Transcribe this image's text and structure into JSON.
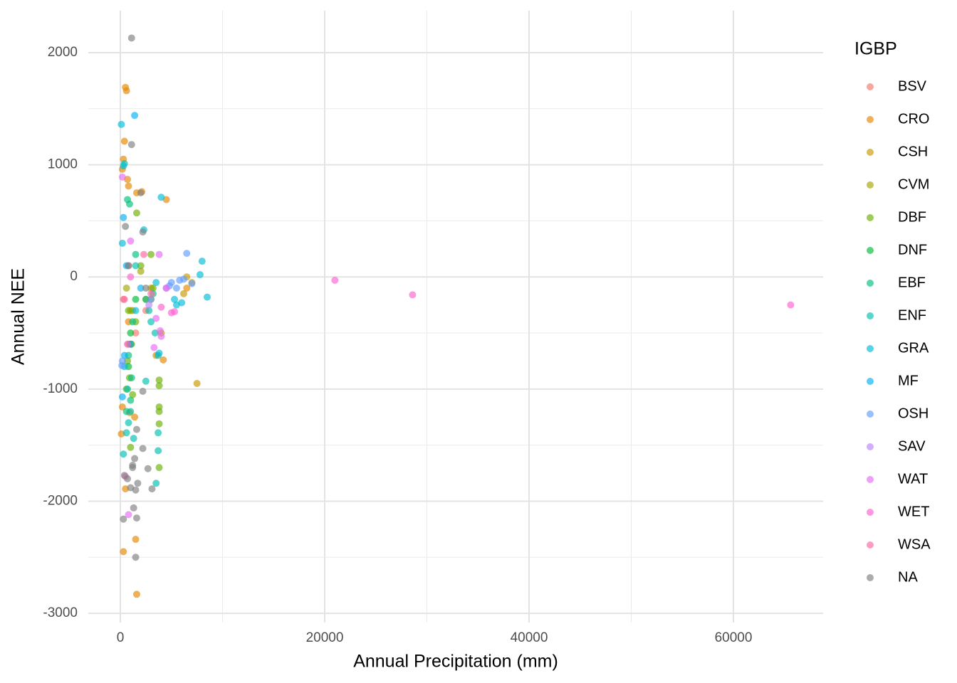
{
  "chart_data": {
    "type": "scatter",
    "x_label": "Annual Precipitation (mm)",
    "y_label": "Annual NEE",
    "legend_title": "IGBP",
    "xlim": [
      -3136,
      68780
    ],
    "ylim": [
      -3082,
      2374
    ],
    "xticks": [
      0,
      20000,
      40000,
      60000
    ],
    "yticks": [
      -3000,
      -2000,
      -1000,
      0,
      1000,
      2000
    ],
    "x_minor_grid": [
      10000,
      30000,
      50000
    ],
    "y_minor_grid": [
      -2500,
      -1500,
      -500,
      500,
      1500
    ],
    "grid": true,
    "legend": "right",
    "opacity": 0.65,
    "series": [
      {
        "name": "BSV",
        "color": "#F8766D",
        "x": [
          300,
          800,
          1500,
          2500
        ],
        "values": [
          -200,
          100,
          -500,
          -300
        ]
      },
      {
        "name": "CRO",
        "color": "#E58700",
        "x": [
          500,
          600,
          400,
          300,
          200,
          700,
          800,
          1600,
          2100,
          4500,
          500,
          1500,
          300,
          100,
          200,
          1400,
          1600,
          900,
          3500,
          4200,
          6500,
          1000,
          800
        ],
        "values": [
          1690,
          1660,
          1210,
          1050,
          960,
          870,
          810,
          750,
          760,
          690,
          -1890,
          -2340,
          -2450,
          -1400,
          -1160,
          -1250,
          -2830,
          -1210,
          -700,
          -740,
          -100,
          -600,
          -400
        ]
      },
      {
        "name": "CSH",
        "color": "#C99800",
        "x": [
          7500,
          6500,
          6200,
          7000,
          2500,
          3000,
          1200,
          800,
          4000
        ],
        "values": [
          -950,
          0,
          -150,
          -50,
          -200,
          -100,
          -300,
          -600,
          -500
        ]
      },
      {
        "name": "CVM",
        "color": "#A3A500",
        "x": [
          600,
          1000,
          2000,
          3000
        ],
        "values": [
          -100,
          -300,
          50,
          -200
        ]
      },
      {
        "name": "DBF",
        "color": "#6BB100",
        "x": [
          1600,
          3800,
          3800,
          3800,
          3800,
          3800,
          3800,
          1000,
          1200,
          700,
          900,
          3000,
          2000,
          800,
          1100,
          600,
          1500,
          3200
        ],
        "values": [
          570,
          -920,
          -970,
          -1160,
          -1200,
          -1310,
          -1700,
          -1520,
          -1050,
          -750,
          -900,
          200,
          100,
          -300,
          -600,
          -1000,
          -400,
          -100
        ]
      },
      {
        "name": "DNF",
        "color": "#00BA38",
        "x": [
          800,
          1000,
          1500
        ],
        "values": [
          -800,
          -500,
          -200
        ]
      },
      {
        "name": "EBF",
        "color": "#00BF7D",
        "x": [
          700,
          900,
          600,
          1000,
          1200,
          2500,
          3200,
          800,
          1100,
          1500
        ],
        "values": [
          690,
          650,
          -1200,
          -1100,
          -400,
          -200,
          -150,
          -700,
          -900,
          200
        ]
      },
      {
        "name": "ENF",
        "color": "#00C0AF",
        "x": [
          400,
          300,
          1300,
          3700,
          3700,
          3700,
          3500,
          2500,
          600,
          800,
          1000,
          700,
          3000,
          3400,
          2800,
          1500
        ],
        "values": [
          1010,
          -1580,
          -1440,
          -1390,
          -1550,
          -700,
          -1840,
          -930,
          -1390,
          -1300,
          -1200,
          -1000,
          -400,
          -500,
          -300,
          100
        ]
      },
      {
        "name": "GRA",
        "color": "#00BCD8",
        "x": [
          100,
          300,
          8000,
          7800,
          8500,
          5500,
          6000,
          5300,
          4000,
          2300,
          3800,
          3500,
          1500,
          200,
          400
        ],
        "values": [
          1360,
          990,
          140,
          20,
          -180,
          -250,
          -230,
          -200,
          710,
          420,
          -680,
          -50,
          -300,
          300,
          -800
        ]
      },
      {
        "name": "MF",
        "color": "#00B0F6",
        "x": [
          1400,
          300,
          400,
          1000,
          200,
          600,
          2000
        ],
        "values": [
          1440,
          530,
          -700,
          -600,
          -1070,
          100,
          -100
        ]
      },
      {
        "name": "OSH",
        "color": "#619CFF",
        "x": [
          6500,
          5000,
          5500,
          5800,
          4800,
          6200,
          3000,
          200,
          150,
          7000
        ],
        "values": [
          210,
          -50,
          -100,
          -30,
          -80,
          -20,
          -200,
          -750,
          -790,
          -60
        ]
      },
      {
        "name": "SAV",
        "color": "#B983FF",
        "x": [
          4500,
          2800
        ],
        "values": [
          -100,
          -250
        ]
      },
      {
        "name": "WAT",
        "color": "#E76BF3",
        "x": [
          200,
          800,
          1000,
          3800,
          3900,
          4000,
          3300,
          3500,
          4500
        ],
        "values": [
          890,
          -2120,
          320,
          200,
          -480,
          -530,
          -630,
          -370,
          -100
        ]
      },
      {
        "name": "WET",
        "color": "#FD61D1",
        "x": [
          21000,
          28600,
          65600,
          500,
          5000,
          5300,
          4000,
          700,
          1000
        ],
        "values": [
          -30,
          -160,
          -250,
          -1780,
          -320,
          -310,
          -270,
          -600,
          0
        ]
      },
      {
        "name": "WSA",
        "color": "#FF67A4",
        "x": [
          2300,
          3000,
          400
        ],
        "values": [
          200,
          -150,
          -200
        ]
      },
      {
        "name": "NA",
        "color": "#7F7F7F",
        "x": [
          1100,
          1100,
          300,
          400,
          2200,
          1500,
          1600,
          1300,
          1200,
          700,
          1000,
          1500,
          1400,
          1200,
          2200,
          1600,
          2700,
          3100,
          1700,
          800,
          500,
          2000,
          2200,
          2500
        ],
        "values": [
          2130,
          1180,
          -2160,
          -1770,
          -1530,
          -2500,
          -2150,
          -2060,
          -1680,
          -1800,
          -1880,
          -1900,
          -1620,
          -1700,
          -1020,
          -1360,
          -1710,
          -1890,
          -1840,
          100,
          450,
          750,
          400,
          -100
        ]
      }
    ]
  }
}
